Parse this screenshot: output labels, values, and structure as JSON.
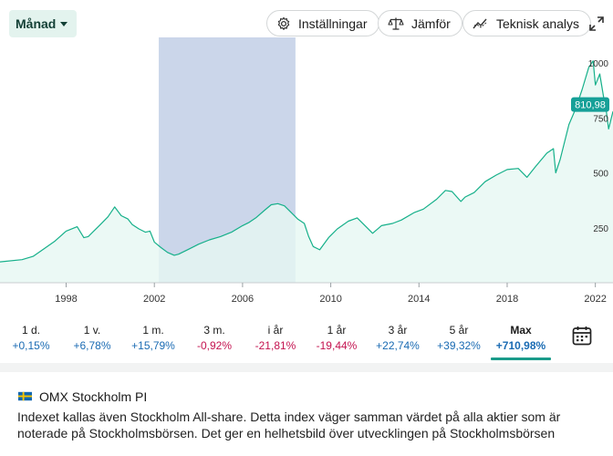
{
  "toolbar": {
    "period_label": "Månad",
    "settings_label": "Inställningar",
    "compare_label": "Jämför",
    "technical_label": "Teknisk analys"
  },
  "chart_data": {
    "type": "area",
    "series": [
      {
        "x": [
          1995.0,
          1996.0,
          1996.5,
          1997.0,
          1997.5,
          1998.0,
          1998.5,
          1998.8,
          1999.0,
          1999.5,
          1999.9,
          2000.2,
          2000.5,
          2000.8,
          2001.0,
          2001.3,
          2001.6,
          2001.8,
          2002.0,
          2002.3,
          2002.6,
          2002.9,
          2003.1,
          2003.5,
          2003.8,
          2004.0,
          2004.5,
          2005.0,
          2005.5,
          2006.0,
          2006.3,
          2006.6,
          2007.0,
          2007.3,
          2007.6,
          2007.9,
          2008.2,
          2008.5,
          2008.8,
          2009.0,
          2009.2,
          2009.5,
          2009.9,
          2010.3,
          2010.8,
          2011.2,
          2011.6,
          2011.9,
          2012.3,
          2012.8,
          2013.2,
          2013.8,
          2014.2,
          2014.8,
          2015.2,
          2015.5,
          2015.9,
          2016.1,
          2016.5,
          2017.0,
          2017.5,
          2018.0,
          2018.5,
          2018.9,
          2019.3,
          2019.8,
          2020.1,
          2020.2,
          2020.4,
          2020.8,
          2021.1,
          2021.4,
          2021.7,
          2021.9,
          2022.0,
          2022.2,
          2022.4,
          2022.5,
          2022.6,
          2022.8
        ],
        "values": [
          95,
          105,
          120,
          155,
          190,
          235,
          255,
          205,
          210,
          260,
          300,
          345,
          305,
          290,
          265,
          245,
          230,
          235,
          185,
          160,
          138,
          125,
          130,
          150,
          165,
          175,
          195,
          210,
          230,
          260,
          275,
          295,
          330,
          355,
          360,
          350,
          320,
          290,
          270,
          210,
          165,
          150,
          205,
          245,
          280,
          295,
          255,
          225,
          260,
          270,
          285,
          320,
          335,
          380,
          420,
          415,
          370,
          390,
          410,
          460,
          490,
          515,
          520,
          480,
          530,
          590,
          610,
          500,
          560,
          720,
          790,
          880,
          980,
          1010,
          900,
          950,
          830,
          780,
          700,
          780
        ],
        "current_value_label": "810,98"
      }
    ],
    "x_ticks": [
      "1998",
      "2002",
      "2006",
      "2010",
      "2014",
      "2018",
      "2022"
    ],
    "y_ticks": [
      "1000",
      "750",
      "500",
      "250"
    ],
    "ylim": [
      0,
      1100
    ],
    "xlim": [
      1995.0,
      2022.8
    ],
    "highlight_range": [
      2002.2,
      2008.4
    ],
    "colors": {
      "line": "#16b08a",
      "fill": "#e6f7f2",
      "highlight": "#cbd6ea",
      "badge": "#16a098"
    }
  },
  "periods": [
    {
      "label": "1 d.",
      "change": "+0,15%",
      "sign": "pos"
    },
    {
      "label": "1 v.",
      "change": "+6,78%",
      "sign": "pos"
    },
    {
      "label": "1 m.",
      "change": "+15,79%",
      "sign": "pos"
    },
    {
      "label": "3 m.",
      "change": "-0,92%",
      "sign": "neg"
    },
    {
      "label": "i år",
      "change": "-21,81%",
      "sign": "neg"
    },
    {
      "label": "1 år",
      "change": "-19,44%",
      "sign": "neg"
    },
    {
      "label": "3 år",
      "change": "+22,74%",
      "sign": "pos"
    },
    {
      "label": "5 år",
      "change": "+39,32%",
      "sign": "pos"
    },
    {
      "label": "Max",
      "change": "+710,98%",
      "sign": "pos",
      "active": true
    }
  ],
  "info": {
    "title": "OMX Stockholm PI",
    "description": "Indexet kallas även Stockholm All-share. Detta index väger samman värdet på alla aktier som är noterade på Stockholmsbörsen. Det ger en helhetsbild över utvecklingen på Stockholmsbörsen"
  }
}
